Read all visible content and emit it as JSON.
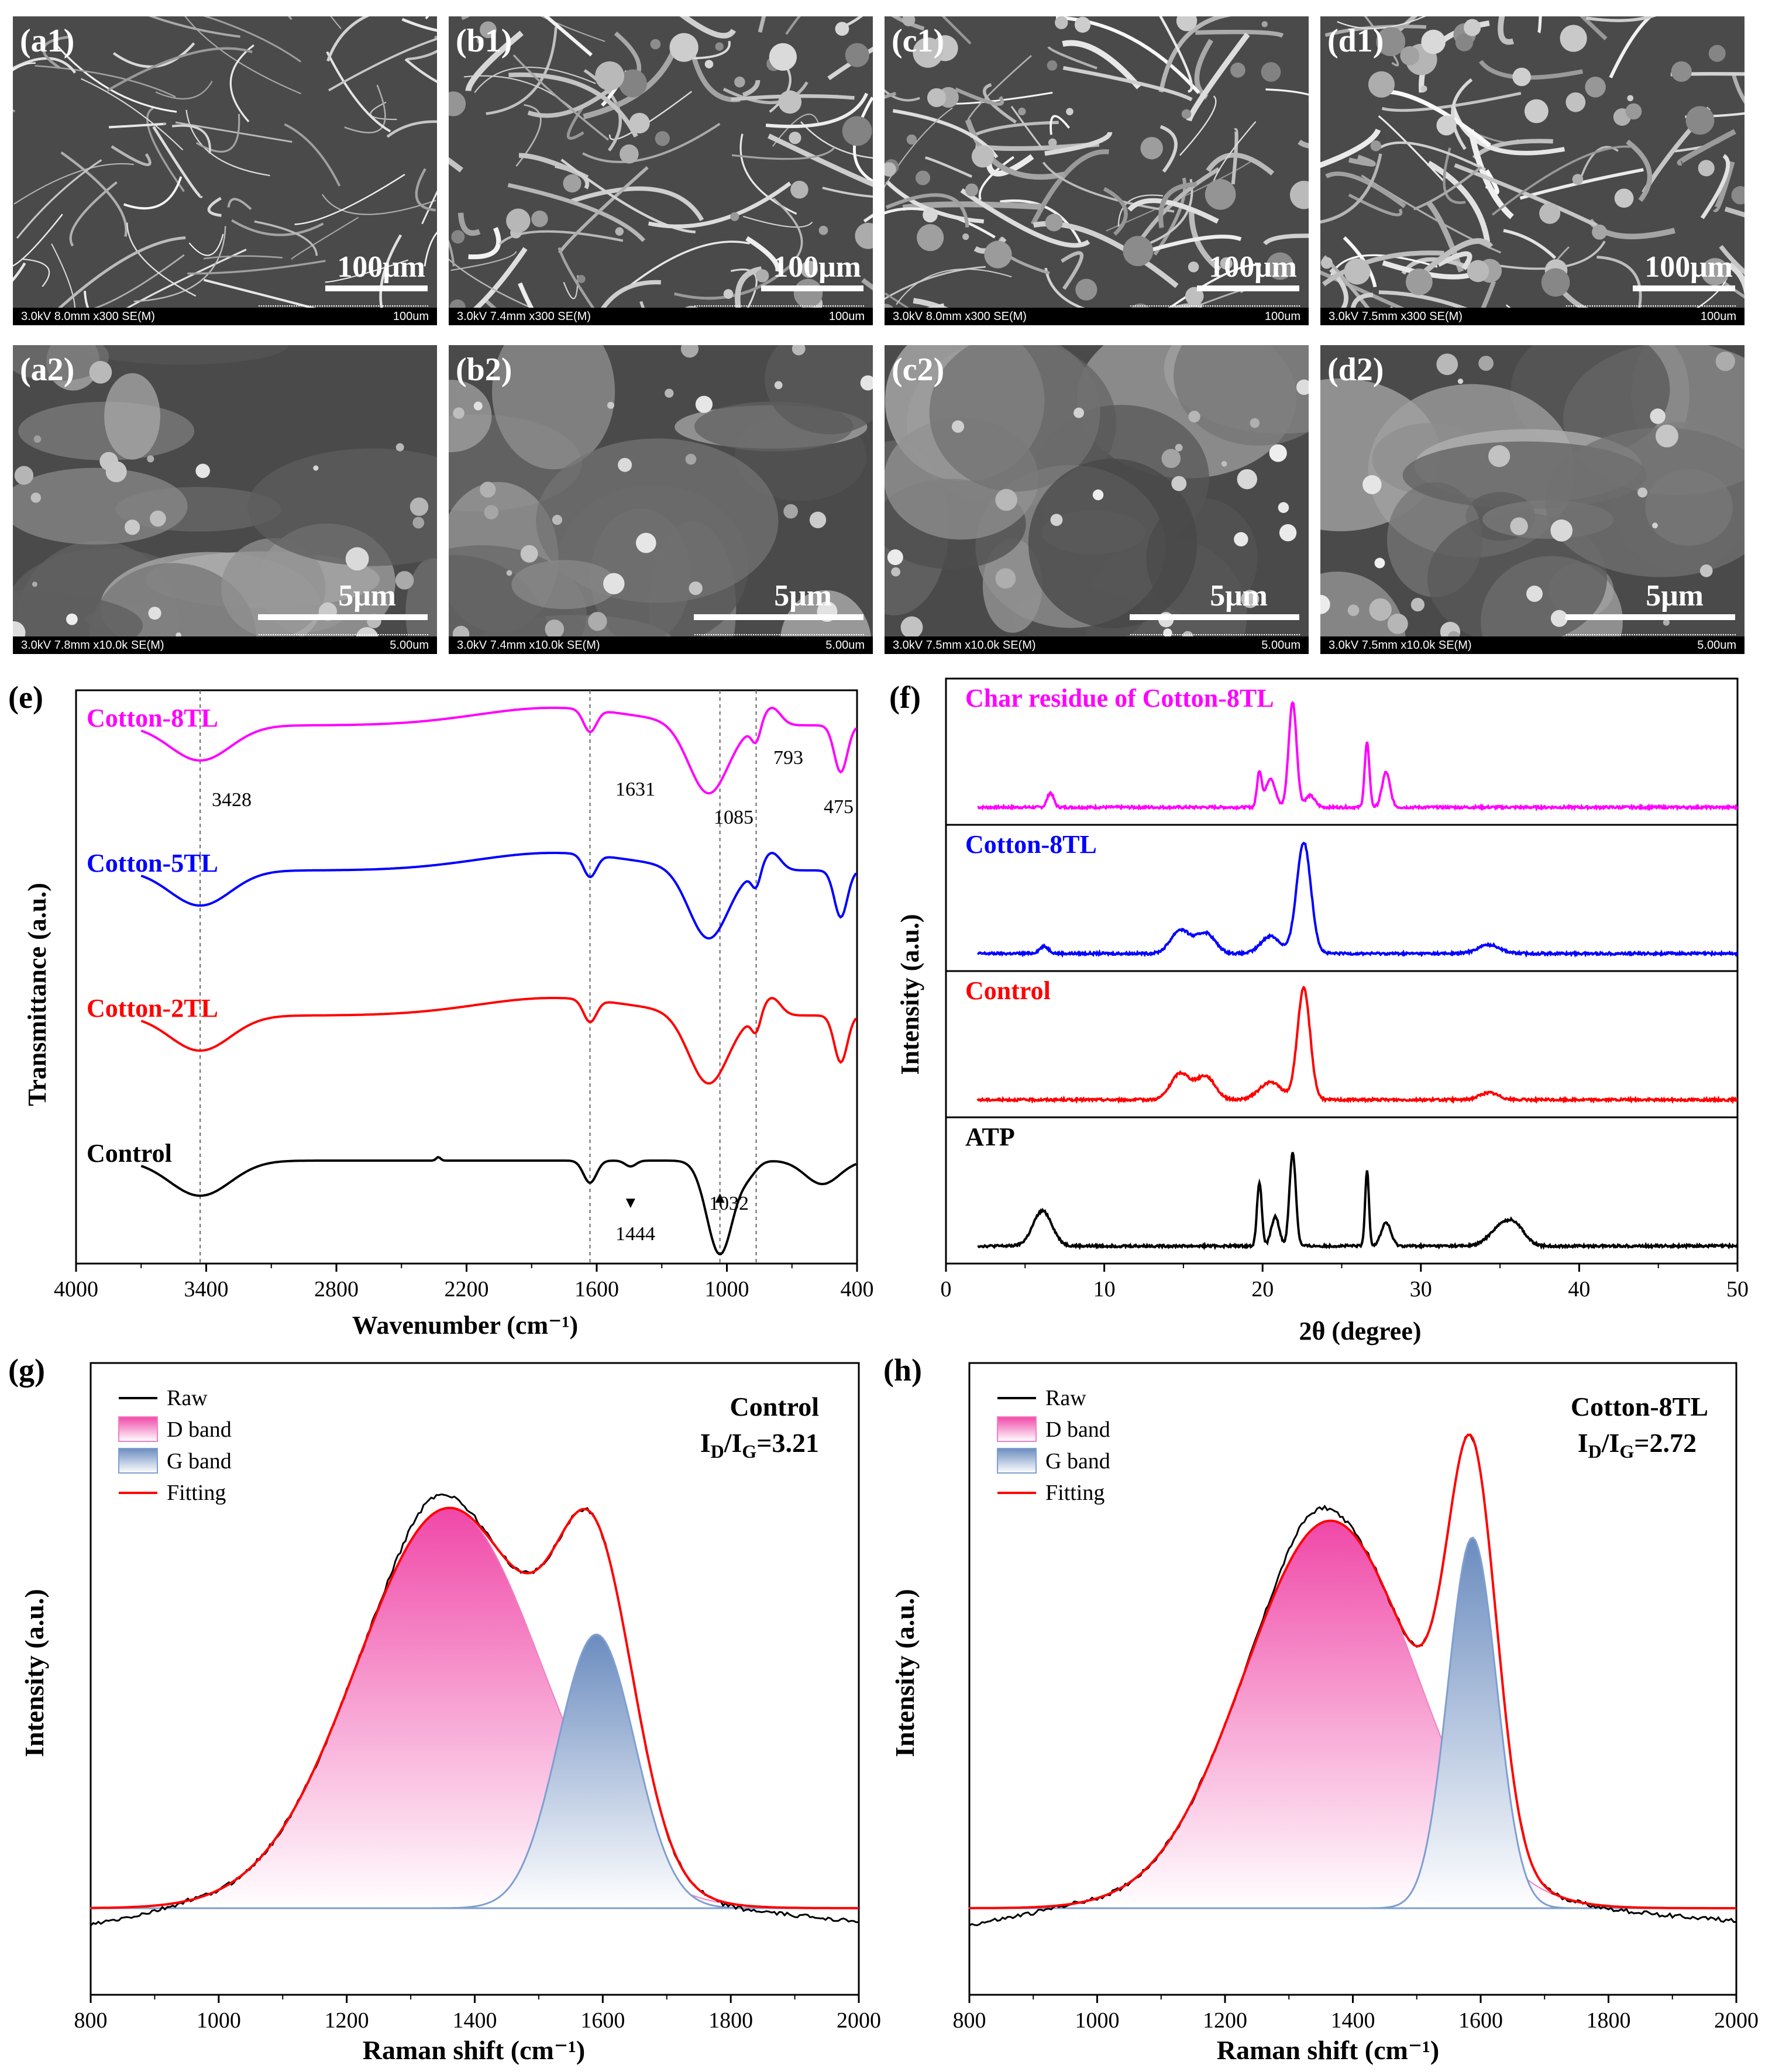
{
  "sem": {
    "panels": [
      {
        "label": "(a1)",
        "scale": "100μm",
        "info_left": "3.0kV 8.0mm x300 SE(M)",
        "info_right": "100um"
      },
      {
        "label": "(b1)",
        "scale": "100μm",
        "info_left": "3.0kV 7.4mm x300 SE(M)",
        "info_right": "100um"
      },
      {
        "label": "(c1)",
        "scale": "100μm",
        "info_left": "3.0kV 8.0mm x300 SE(M)",
        "info_right": "100um"
      },
      {
        "label": "(d1)",
        "scale": "100μm",
        "info_left": "3.0kV 7.5mm x300 SE(M)",
        "info_right": "100um"
      },
      {
        "label": "(a2)",
        "scale": "5μm",
        "info_left": "3.0kV 7.8mm x10.0k SE(M)",
        "info_right": "5.00um"
      },
      {
        "label": "(b2)",
        "scale": "5μm",
        "info_left": "3.0kV 7.4mm x10.0k SE(M)",
        "info_right": "5.00um"
      },
      {
        "label": "(c2)",
        "scale": "5μm",
        "info_left": "3.0kV 7.5mm x10.0k SE(M)",
        "info_right": "5.00um"
      },
      {
        "label": "(d2)",
        "scale": "5μm",
        "info_left": "3.0kV 7.5mm x10.0k SE(M)",
        "info_right": "5.00um"
      }
    ]
  },
  "chart_data": [
    {
      "id": "e",
      "panel_label": "(e)",
      "type": "line",
      "xlabel": "Wavenumber (cm⁻¹)",
      "ylabel": "Transmittance (a.u.)",
      "xlim": [
        4000,
        400
      ],
      "xticks": [
        4000,
        3400,
        2800,
        2200,
        1600,
        1000,
        400
      ],
      "series": [
        {
          "name": "Cotton-8TL",
          "color": "#ff00ff"
        },
        {
          "name": "Cotton-5TL",
          "color": "#0000ff"
        },
        {
          "name": "Cotton-2TL",
          "color": "#ff0000"
        },
        {
          "name": "Control",
          "color": "#000000"
        }
      ],
      "reference_lines": [
        3428,
        1631,
        1032,
        865
      ],
      "annotations": [
        "3428",
        "1631",
        "1085",
        "793",
        "475",
        "1444",
        "1032"
      ]
    },
    {
      "id": "f",
      "panel_label": "(f)",
      "type": "line",
      "xlabel": "2θ (degree)",
      "ylabel": "Intensity (a.u.)",
      "xlim": [
        0,
        50
      ],
      "xticks": [
        0,
        10,
        20,
        30,
        40,
        50
      ],
      "series": [
        {
          "name": "Char residue of Cotton-8TL",
          "color": "#ff00ff",
          "peaks": [
            6.6,
            19.8,
            21.9,
            26.6,
            27.8
          ]
        },
        {
          "name": "Cotton-8TL",
          "color": "#0000ff",
          "peaks": [
            6.2,
            14.8,
            16.4,
            22.6,
            34.3
          ]
        },
        {
          "name": "Control",
          "color": "#ff0000",
          "peaks": [
            14.8,
            16.4,
            22.6,
            34.3
          ]
        },
        {
          "name": "ATP",
          "color": "#000000",
          "peaks": [
            6.1,
            19.8,
            21.9,
            26.6,
            27.8,
            35.0
          ]
        }
      ]
    },
    {
      "id": "g",
      "panel_label": "(g)",
      "type": "area",
      "title": "Control",
      "ratio_label": "I",
      "ratio_sub": "D",
      "ratio_sep": "/I",
      "ratio_sub2": "G",
      "ratio_value": "=3.21",
      "xlabel": "Raman shift (cm⁻¹)",
      "ylabel": "Intensity (a.u.)",
      "xlim": [
        800,
        2000
      ],
      "xticks": [
        800,
        1000,
        1200,
        1400,
        1600,
        1800,
        2000
      ],
      "legend": [
        "Raw",
        "D band",
        "G band",
        "Fitting"
      ],
      "d_band": {
        "center": 1360,
        "height": 0.95,
        "width": 145
      },
      "g_band": {
        "center": 1590,
        "height": 0.65,
        "width": 60
      }
    },
    {
      "id": "h",
      "panel_label": "(h)",
      "type": "area",
      "title": "Cotton-8TL",
      "ratio_label": "I",
      "ratio_sub": "D",
      "ratio_sep": "/I",
      "ratio_sub2": "G",
      "ratio_value": "=2.72",
      "xlabel": "Raman shift (cm⁻¹)",
      "ylabel": "Intensity (a.u.)",
      "xlim": [
        800,
        2000
      ],
      "xticks": [
        800,
        1000,
        1200,
        1400,
        1600,
        1800,
        2000
      ],
      "legend": [
        "Raw",
        "D band",
        "G band",
        "Fitting"
      ],
      "d_band": {
        "center": 1365,
        "height": 0.92,
        "width": 135
      },
      "g_band": {
        "center": 1587,
        "height": 0.88,
        "width": 38
      }
    }
  ]
}
